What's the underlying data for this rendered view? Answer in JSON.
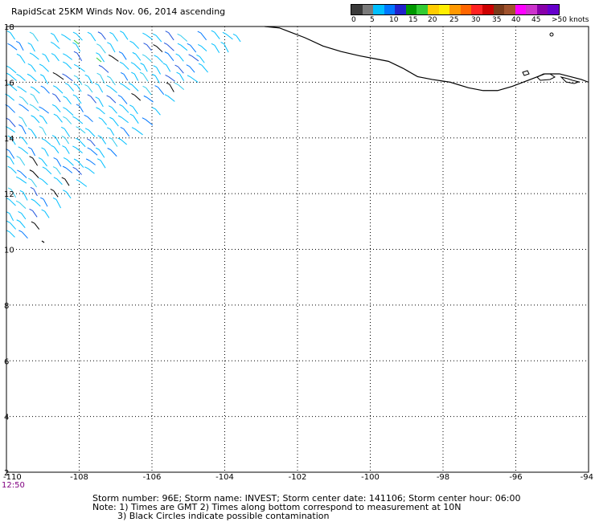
{
  "title": "RapidScat 25KM Winds Nov. 06, 2014 ascending",
  "colorbar": {
    "labels": [
      "0",
      "5",
      "10",
      "15",
      "20",
      "25",
      "30",
      "35",
      "40",
      "45",
      ">50 knots"
    ],
    "colors": [
      "#3a3a3a",
      "#7a7a7a",
      "#00bfff",
      "#0077ff",
      "#2222cc",
      "#009900",
      "#33cc33",
      "#ffcc00",
      "#ffee00",
      "#ff9900",
      "#ff6600",
      "#ff2222",
      "#cc0000",
      "#7a3a1a",
      "#a0522d",
      "#ff00ff",
      "#cc33cc",
      "#8800aa",
      "#6600cc"
    ]
  },
  "axes": {
    "lon_ticks": [
      "-110",
      "-108",
      "-106",
      "-104",
      "-102",
      "-100",
      "-98",
      "-96",
      "-94"
    ],
    "lat_ticks": [
      "18",
      "16",
      "14",
      "12",
      "10",
      "8",
      "6",
      "4",
      "2"
    ],
    "lon_range": [
      -110,
      -94
    ],
    "lat_range": [
      2,
      18
    ]
  },
  "time_label": "12:50",
  "info": {
    "line1": "Storm number: 96E;  Storm name: INVEST;  Storm center date: 141106;  Storm center hour: 06:00",
    "line2": "Note: 1) Times are GMT  2) Times along bottom correspond to measurement at 10N",
    "line3": "3) Black Circles indicate possible contamination"
  },
  "coastline": [
    [
      -102.9,
      18.0
    ],
    [
      -102.5,
      17.95
    ],
    [
      -102.2,
      17.8
    ],
    [
      -101.8,
      17.6
    ],
    [
      -101.3,
      17.3
    ],
    [
      -100.8,
      17.1
    ],
    [
      -100.3,
      16.95
    ],
    [
      -99.9,
      16.85
    ],
    [
      -99.5,
      16.75
    ],
    [
      -99.1,
      16.5
    ],
    [
      -98.7,
      16.2
    ],
    [
      -98.3,
      16.1
    ],
    [
      -97.8,
      16.0
    ],
    [
      -97.3,
      15.8
    ],
    [
      -96.9,
      15.7
    ],
    [
      -96.5,
      15.7
    ],
    [
      -96.1,
      15.85
    ],
    [
      -95.6,
      16.1
    ],
    [
      -95.2,
      16.3
    ],
    [
      -94.8,
      16.3
    ],
    [
      -94.5,
      16.2
    ],
    [
      -94.2,
      16.1
    ],
    [
      -94.0,
      16.0
    ]
  ]
}
